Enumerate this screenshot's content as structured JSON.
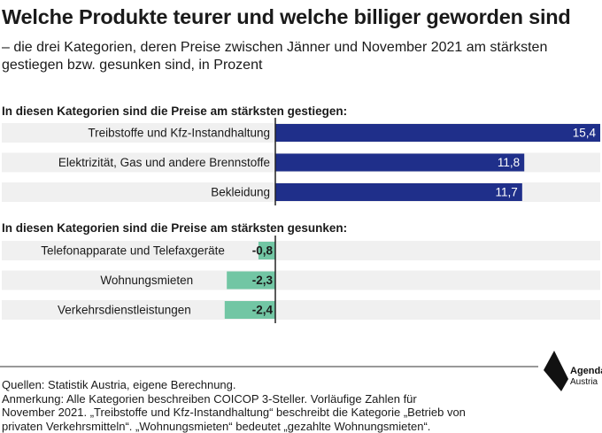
{
  "title": "Welche Produkte teurer und welche billiger geworden sind",
  "subtitle": "– die drei Kategorien, deren Preise zwischen Jänner und November 2021 am stärksten gestiegen bzw. gesunken sind, in Prozent",
  "colors": {
    "increase": "#1f2f8a",
    "decrease": "#72c6a4",
    "row_bg": "#f0f0f0",
    "axis": "#222222"
  },
  "chart_data": [
    {
      "type": "bar",
      "title": "In diesen Kategorien sind die Preise am stärksten gestiegen:",
      "categories": [
        "Treibstoffe und Kfz-Instandhaltung",
        "Elektrizität, Gas und andere Brennstoffe",
        "Bekleidung"
      ],
      "values": [
        15.4,
        11.8,
        11.7
      ],
      "value_labels": [
        "15,4",
        "11,8",
        "11,7"
      ],
      "xlim": [
        -3.5,
        15.4
      ]
    },
    {
      "type": "bar",
      "title": "In diesen Kategorien sind die Preise am stärksten gesunken:",
      "categories": [
        "Telefonapparate und Telefaxgeräte",
        "Wohnungsmieten",
        "Verkehrsdienstleistungen"
      ],
      "values": [
        -0.8,
        -2.3,
        -2.4
      ],
      "value_labels": [
        "-0,8",
        "-2,3",
        "-2,4"
      ],
      "xlim": [
        -3.5,
        15.4
      ]
    }
  ],
  "footer": {
    "line1": "Quellen: Statistik Austria, eigene Berechnung.",
    "line2": "Anmerkung: Alle Kategorien beschreiben COICOP 3-Steller. Vorläufige Zahlen für",
    "line3": "November 2021. „Treibstoffe und Kfz-Instandhaltung“ beschreibt die Kategorie „Betrieb von",
    "line4": "privaten Verkehrsmitteln“. „Wohnungsmieten“ bedeutet „gezahlte Wohnungsmieten“."
  },
  "logo": {
    "line1": "Agenda",
    "line2": "Austria"
  }
}
